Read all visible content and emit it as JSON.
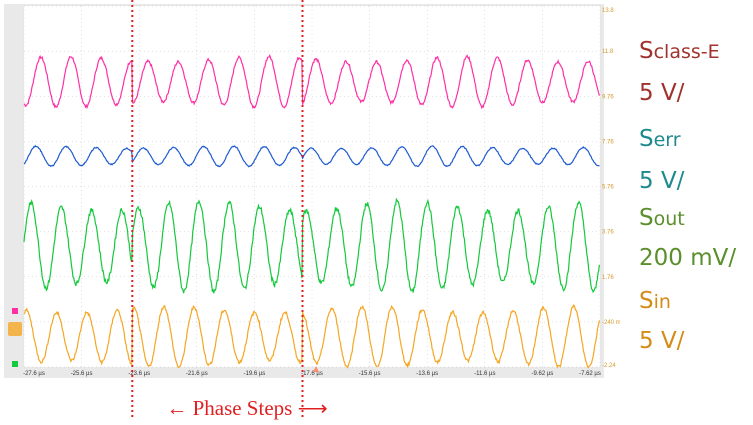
{
  "chart_data": {
    "type": "line",
    "title": "",
    "xlabel": "",
    "ylabel": "",
    "x_ticks": [
      "-27.6 µs",
      "-25.6 µs",
      "-23.6 µs",
      "-21.6 µs",
      "-19.6 µs",
      "-17.6 µs",
      "-15.6 µs",
      "-13.6 µs",
      "-11.6 µs",
      "-9.62 µs",
      "-7.62 µs"
    ],
    "x_tick_values": [
      -27.62,
      -25.62,
      -23.62,
      -21.62,
      -19.62,
      -17.62,
      -15.62,
      -13.62,
      -11.62,
      -9.62,
      -7.62
    ],
    "y_ticks": [
      "13.8",
      "11.8",
      "9.76",
      "7.76",
      "5.76",
      "3.76",
      "1.76",
      "-240 m",
      "-2.24"
    ],
    "y_tick_values": [
      13.76,
      11.76,
      9.76,
      7.76,
      5.76,
      3.76,
      1.76,
      -0.24,
      -2.24
    ],
    "xlim": [
      -27.62,
      -7.62
    ],
    "ylim": [
      -2.24,
      13.76
    ],
    "grid": true,
    "legend_position": "right",
    "series": [
      {
        "name": "Sclass-E",
        "color": "#ff2fa6",
        "center": 10.4,
        "amplitude": 1.0,
        "period_us": 1.05,
        "phase_steps_us": [
          -23.86,
          -17.95
        ]
      },
      {
        "name": "Serr",
        "color": "#1f5bd1",
        "center": 7.1,
        "amplitude": 0.4,
        "period_us": 1.05,
        "phase_steps_us": [
          -23.86,
          -17.95
        ]
      },
      {
        "name": "Sout",
        "color": "#14c93c",
        "center": 3.1,
        "amplitude": 1.8,
        "period_us": 1.05,
        "phase_steps_us": [
          -23.86,
          -17.95
        ]
      },
      {
        "name": "Sin",
        "color": "#f5a623",
        "center": -0.9,
        "amplitude": 1.2,
        "period_us": 1.05,
        "phase_steps_us": [
          -23.86,
          -17.95
        ]
      }
    ],
    "annotations": [
      {
        "text": "← Phase Steps ⟶",
        "x_range": [
          -23.86,
          -17.95
        ]
      }
    ]
  },
  "legend": [
    {
      "cap": "S",
      "rest": "class-E",
      "color": "#a0322d"
    },
    {
      "scale": "5 V/",
      "color": "#a0322d"
    },
    {
      "cap": "S",
      "rest": "err",
      "color": "#1f8a8e"
    },
    {
      "scale": "5 V/",
      "color": "#1f8a8e"
    },
    {
      "cap": "S",
      "rest": "out",
      "color": "#5a8f2c"
    },
    {
      "scale": "200 mV/",
      "color": "#5a8f2c"
    },
    {
      "cap": "S",
      "rest": "in",
      "color": "#d48c17"
    },
    {
      "scale": "5 V/",
      "color": "#d48c17"
    }
  ],
  "phase_label": "← Phase Steps ⟶",
  "colors": {
    "annotation": "#e02020",
    "grid": "#c8c8c8"
  }
}
